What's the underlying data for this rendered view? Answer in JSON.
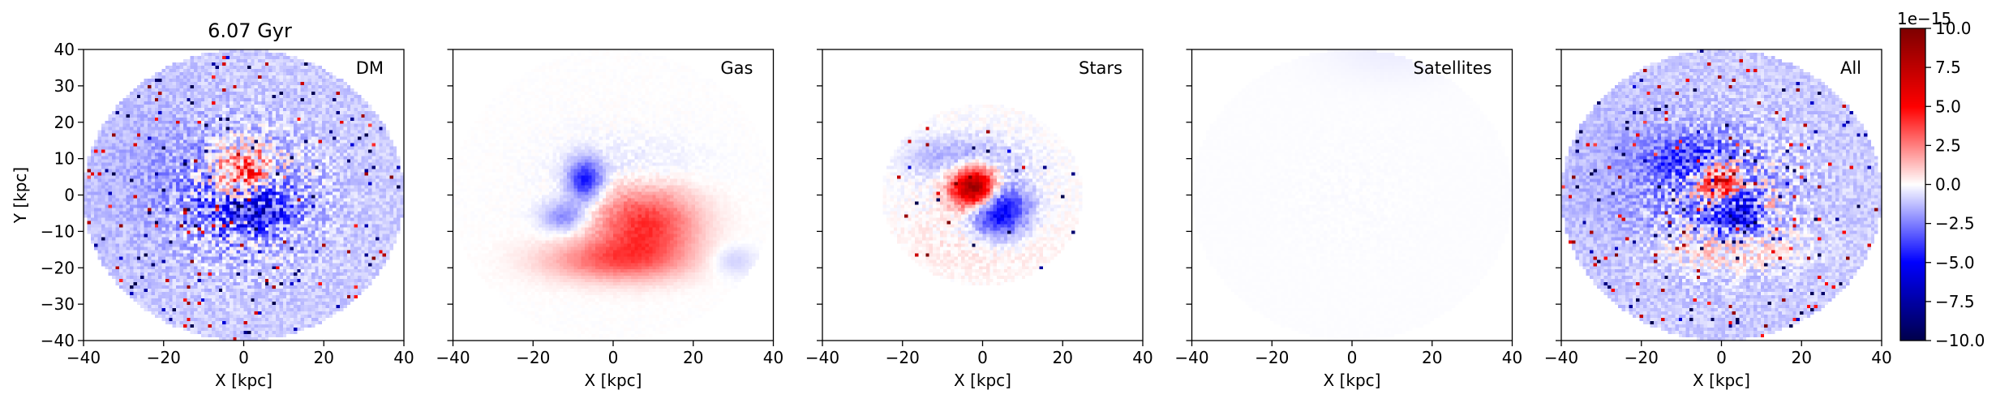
{
  "figure_title": "6.07 Gyr",
  "chart_data": [
    {
      "type": "heatmap",
      "panel_label": "DM",
      "xlabel": "X [kpc]",
      "ylabel": "Y [kpc]",
      "xlim": [
        -40,
        40
      ],
      "ylim": [
        -40,
        40
      ],
      "xticks": [
        -40,
        -20,
        0,
        20,
        40
      ],
      "yticks": [
        -40,
        -30,
        -20,
        -10,
        0,
        10,
        20,
        30,
        40
      ],
      "grid": false,
      "show_yticklabels": true,
      "components": [
        {
          "x": 0,
          "y": 5,
          "sx": 5,
          "sy": 5,
          "amp": 0.55
        },
        {
          "x": 2,
          "y": -3,
          "sx": 7,
          "sy": 5,
          "amp": -0.5
        },
        {
          "x": -20,
          "y": 5,
          "sx": 12,
          "sy": 14,
          "amp": -0.08
        }
      ],
      "background": -0.1,
      "noise": 0.15,
      "speckle": 0.03,
      "mask_radius": 40,
      "mask_center": [
        0,
        0
      ]
    },
    {
      "type": "heatmap",
      "panel_label": "Gas",
      "xlabel": "X [kpc]",
      "ylabel": "",
      "xlim": [
        -40,
        40
      ],
      "ylim": [
        -40,
        40
      ],
      "xticks": [
        -40,
        -20,
        0,
        20,
        40
      ],
      "yticks": [
        -40,
        -30,
        -20,
        -10,
        0,
        10,
        20,
        30,
        40
      ],
      "grid": false,
      "show_yticklabels": false,
      "components": [
        {
          "x": -7,
          "y": 4,
          "sx": 3,
          "sy": 4,
          "amp": -0.45
        },
        {
          "x": -12,
          "y": -6,
          "sx": 4,
          "sy": 3,
          "amp": -0.25
        },
        {
          "x": 8,
          "y": -8,
          "sx": 9,
          "sy": 7,
          "amp": 0.4
        },
        {
          "x": 0,
          "y": -18,
          "sx": 12,
          "sy": 4,
          "amp": 0.28
        },
        {
          "x": 5,
          "y": 8,
          "sx": 12,
          "sy": 5,
          "amp": -0.05
        },
        {
          "x": 30,
          "y": -18,
          "sx": 4,
          "sy": 3,
          "amp": -0.1
        }
      ],
      "background": 0,
      "noise": 0.02,
      "speckle": 0,
      "mask_radius": 40,
      "mask_center": [
        0,
        0
      ]
    },
    {
      "type": "heatmap",
      "panel_label": "Stars",
      "xlabel": "X [kpc]",
      "ylabel": "",
      "xlim": [
        -40,
        40
      ],
      "ylim": [
        -40,
        40
      ],
      "xticks": [
        -40,
        -20,
        0,
        20,
        40
      ],
      "yticks": [
        -40,
        -30,
        -20,
        -10,
        0,
        10,
        20,
        30,
        40
      ],
      "grid": false,
      "show_yticklabels": false,
      "components": [
        {
          "x": -2,
          "y": 2,
          "sx": 4,
          "sy": 4,
          "amp": 1.0
        },
        {
          "x": 4,
          "y": -4,
          "sx": 5,
          "sy": 5,
          "amp": -0.6
        },
        {
          "x": -5,
          "y": 10,
          "sx": 9,
          "sy": 4,
          "amp": -0.2
        },
        {
          "x": 0,
          "y": -14,
          "sx": 14,
          "sy": 6,
          "amp": 0.05
        }
      ],
      "background": 0,
      "noise": 0.04,
      "speckle": 0.01,
      "mask_radius": 25,
      "mask_center": [
        0,
        0
      ]
    },
    {
      "type": "heatmap",
      "panel_label": "Satellites",
      "xlabel": "X [kpc]",
      "ylabel": "",
      "xlim": [
        -40,
        40
      ],
      "ylim": [
        -40,
        40
      ],
      "xticks": [
        -40,
        -20,
        0,
        20,
        40
      ],
      "yticks": [
        -40,
        -30,
        -20,
        -10,
        0,
        10,
        20,
        30,
        40
      ],
      "grid": false,
      "show_yticklabels": false,
      "components": [
        {
          "x": 10,
          "y": 40,
          "sx": 12,
          "sy": 6,
          "amp": -0.03
        }
      ],
      "background": -0.005,
      "noise": 0.003,
      "speckle": 0,
      "mask_radius": 40,
      "mask_center": [
        0,
        0
      ]
    },
    {
      "type": "heatmap",
      "panel_label": "All",
      "xlabel": "X [kpc]",
      "ylabel": "",
      "xlim": [
        -40,
        40
      ],
      "ylim": [
        -40,
        40
      ],
      "xticks": [
        -40,
        -20,
        0,
        20,
        40
      ],
      "yticks": [
        -40,
        -30,
        -20,
        -10,
        0,
        10,
        20,
        30,
        40
      ],
      "grid": false,
      "show_yticklabels": false,
      "components": [
        {
          "x": 0,
          "y": 3,
          "sx": 4,
          "sy": 4,
          "amp": 0.85
        },
        {
          "x": 3,
          "y": -4,
          "sx": 5,
          "sy": 5,
          "amp": -0.55
        },
        {
          "x": -6,
          "y": 10,
          "sx": 8,
          "sy": 4,
          "amp": -0.3
        },
        {
          "x": 2,
          "y": -15,
          "sx": 12,
          "sy": 4,
          "amp": 0.2
        },
        {
          "x": 12,
          "y": -2,
          "sx": 2,
          "sy": 3,
          "amp": 0.2
        },
        {
          "x": -20,
          "y": 5,
          "sx": 12,
          "sy": 14,
          "amp": -0.08
        }
      ],
      "background": -0.1,
      "noise": 0.15,
      "speckle": 0.03,
      "mask_radius": 40,
      "mask_center": [
        0,
        0
      ]
    }
  ],
  "colorbar": {
    "colormap": "seismic",
    "scale_label": "1e−15",
    "vmin": -10.0,
    "vmax": 10.0,
    "ticks": [
      -10.0,
      -7.5,
      -5.0,
      -2.5,
      0.0,
      2.5,
      5.0,
      7.5,
      10.0
    ],
    "tick_labels": [
      "−10.0",
      "−7.5",
      "−5.0",
      "−2.5",
      "0.0",
      "2.5",
      "5.0",
      "7.5",
      "10.0"
    ]
  },
  "colors": {
    "deep_blue": "#00004c",
    "blue": "#0000ff",
    "white": "#ffffff",
    "red": "#ff0000",
    "deep_red": "#7f0000"
  }
}
